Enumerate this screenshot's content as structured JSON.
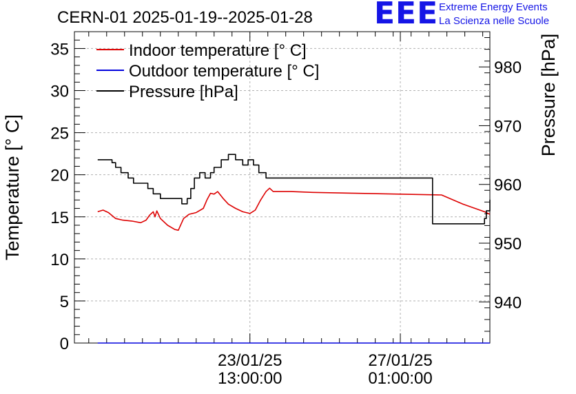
{
  "chart_data": {
    "type": "line",
    "title": "CERN-01 2025-01-19--2025-01-28",
    "ylabel": "Temperature [° C]",
    "y2label": "Pressure [hPa]",
    "ylim": [
      0,
      37
    ],
    "y2lim": [
      933,
      986
    ],
    "xlim": [
      "2025-01-19 11:00",
      "2025-01-29 03:00"
    ],
    "x_ticks": [
      {
        "x": "2025-01-23 13:00",
        "line1": "23/01/25",
        "line2": "13:00:00"
      },
      {
        "x": "2025-01-27 01:00",
        "line1": "27/01/25",
        "line2": "01:00:00"
      }
    ],
    "yticks": [
      0,
      5,
      10,
      15,
      20,
      25,
      30,
      35
    ],
    "y2ticks": [
      940,
      950,
      960,
      970,
      980
    ],
    "grid": true,
    "legend_position": "top-left",
    "series": [
      {
        "name": "Indoor temperature [° C]",
        "color": "#dd0000",
        "axis": "left",
        "points": [
          [
            "2025-01-20 00:00",
            15.6
          ],
          [
            "2025-01-20 03:00",
            15.8
          ],
          [
            "2025-01-20 06:00",
            15.5
          ],
          [
            "2025-01-20 10:00",
            14.8
          ],
          [
            "2025-01-20 14:00",
            14.6
          ],
          [
            "2025-01-20 19:00",
            14.5
          ],
          [
            "2025-01-21 00:00",
            14.3
          ],
          [
            "2025-01-21 03:00",
            14.6
          ],
          [
            "2025-01-21 05:00",
            15.2
          ],
          [
            "2025-01-21 07:00",
            15.6
          ],
          [
            "2025-01-21 08:00",
            15.0
          ],
          [
            "2025-01-21 09:00",
            15.7
          ],
          [
            "2025-01-21 11:00",
            14.8
          ],
          [
            "2025-01-21 15:00",
            14.0
          ],
          [
            "2025-01-21 19:00",
            13.5
          ],
          [
            "2025-01-21 21:00",
            13.4
          ],
          [
            "2025-01-22 00:00",
            14.8
          ],
          [
            "2025-01-22 03:00",
            15.3
          ],
          [
            "2025-01-22 07:00",
            15.5
          ],
          [
            "2025-01-22 11:00",
            16.0
          ],
          [
            "2025-01-22 13:00",
            17.0
          ],
          [
            "2025-01-22 15:00",
            17.8
          ],
          [
            "2025-01-22 17:00",
            17.7
          ],
          [
            "2025-01-22 19:00",
            18.0
          ],
          [
            "2025-01-22 22:00",
            17.2
          ],
          [
            "2025-01-23 01:00",
            16.5
          ],
          [
            "2025-01-23 05:00",
            16.0
          ],
          [
            "2025-01-23 09:00",
            15.6
          ],
          [
            "2025-01-23 13:00",
            15.4
          ],
          [
            "2025-01-23 16:00",
            15.8
          ],
          [
            "2025-01-23 19:00",
            17.0
          ],
          [
            "2025-01-23 22:00",
            18.0
          ],
          [
            "2025-01-24 00:00",
            18.4
          ],
          [
            "2025-01-24 02:00",
            18.0
          ],
          [
            "2025-01-24 12:00",
            18.0
          ],
          [
            "2025-01-25 00:00",
            17.9
          ],
          [
            "2025-01-26 00:00",
            17.8
          ],
          [
            "2025-01-27 00:00",
            17.7
          ],
          [
            "2025-01-28 00:00",
            17.6
          ],
          [
            "2025-01-28 12:00",
            16.5
          ],
          [
            "2025-01-29 00:00",
            15.6
          ],
          [
            "2025-01-29 03:00",
            15.3
          ]
        ]
      },
      {
        "name": "Outdoor temperature [° C]",
        "color": "#0000dd",
        "axis": "left",
        "points": [
          [
            "2025-01-20 00:00",
            0.0
          ],
          [
            "2025-01-29 03:00",
            0.0
          ]
        ]
      },
      {
        "name": "Pressure [hPa]",
        "color": "#000000",
        "axis": "right",
        "step": true,
        "points": [
          [
            "2025-01-20 00:00",
            964.2
          ],
          [
            "2025-01-20 06:00",
            964.2
          ],
          [
            "2025-01-20 08:00",
            963.7
          ],
          [
            "2025-01-20 10:00",
            962.9
          ],
          [
            "2025-01-20 13:00",
            962.0
          ],
          [
            "2025-01-20 17:00",
            961.1
          ],
          [
            "2025-01-20 20:00",
            960.2
          ],
          [
            "2025-01-21 04:00",
            959.3
          ],
          [
            "2025-01-21 07:00",
            958.4
          ],
          [
            "2025-01-21 11:00",
            957.6
          ],
          [
            "2025-01-21 23:00",
            956.7
          ],
          [
            "2025-01-22 02:00",
            957.6
          ],
          [
            "2025-01-22 04:00",
            959.3
          ],
          [
            "2025-01-22 06:00",
            961.1
          ],
          [
            "2025-01-22 09:00",
            962.0
          ],
          [
            "2025-01-22 12:00",
            961.1
          ],
          [
            "2025-01-22 15:00",
            962.0
          ],
          [
            "2025-01-22 17:00",
            962.9
          ],
          [
            "2025-01-22 21:00",
            964.2
          ],
          [
            "2025-01-23 01:00",
            965.1
          ],
          [
            "2025-01-23 05:00",
            964.2
          ],
          [
            "2025-01-23 09:00",
            963.3
          ],
          [
            "2025-01-23 12:00",
            964.2
          ],
          [
            "2025-01-23 15:00",
            963.3
          ],
          [
            "2025-01-23 18:00",
            962.0
          ],
          [
            "2025-01-23 22:00",
            961.1
          ],
          [
            "2025-01-24 01:00",
            961.1
          ],
          [
            "2025-01-27 19:00",
            953.3
          ],
          [
            "2025-01-29 00:00",
            954.2
          ],
          [
            "2025-01-29 01:00",
            955.5
          ],
          [
            "2025-01-29 03:00",
            957.4
          ]
        ]
      }
    ]
  }
}
